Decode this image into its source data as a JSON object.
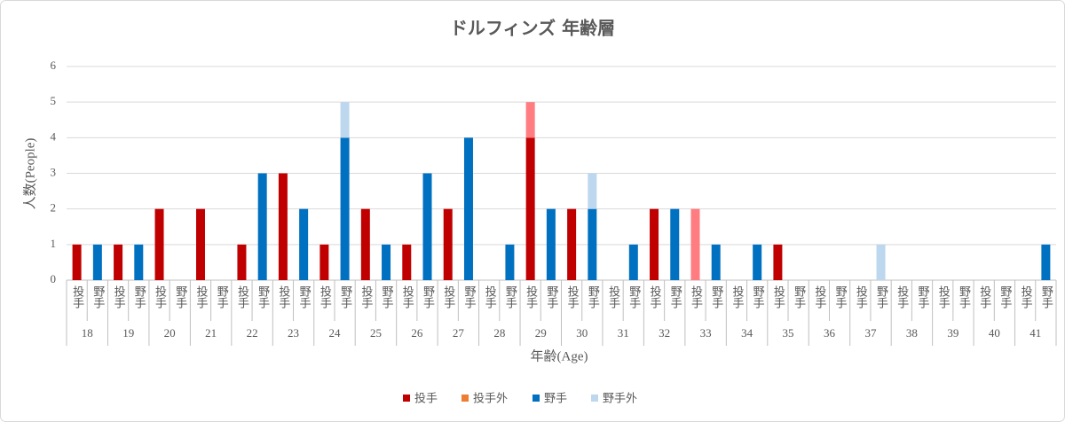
{
  "chart_data": {
    "type": "stacked_bar",
    "title": "ドルフィンズ 年齢層",
    "x_label": "年齢(Age)",
    "y_label": "人数(People)",
    "categories": [
      "投手",
      "野手",
      "投手",
      "野手",
      "投手",
      "野手",
      "投手",
      "野手",
      "投手",
      "野手",
      "投手",
      "野手",
      "投手",
      "野手",
      "投手",
      "野手",
      "投手",
      "野手",
      "投手",
      "野手",
      "投手",
      "野手",
      "投手",
      "野手",
      "投手",
      "野手",
      "投手",
      "野手",
      "投手",
      "野手",
      "投手",
      "野手",
      "投手",
      "野手",
      "投手",
      "野手",
      "投手",
      "野手",
      "投手",
      "野手",
      "投手",
      "野手",
      "投手",
      "野手",
      "投手",
      "野手",
      "投手",
      "野手"
    ],
    "groups": [
      "18",
      "19",
      "20",
      "21",
      "22",
      "23",
      "24",
      "25",
      "26",
      "27",
      "28",
      "29",
      "30",
      "31",
      "32",
      "33",
      "34",
      "35",
      "36",
      "37",
      "38",
      "39",
      "40",
      "41"
    ],
    "series": [
      {
        "name": "投手",
        "color": "#c00000",
        "values": [
          1,
          0,
          1,
          0,
          2,
          0,
          2,
          0,
          1,
          0,
          3,
          0,
          1,
          0,
          2,
          0,
          1,
          0,
          2,
          0,
          0,
          0,
          4,
          0,
          2,
          0,
          0,
          0,
          2,
          0,
          0,
          0,
          0,
          0,
          1,
          0,
          0,
          0,
          0,
          0,
          0,
          0,
          0,
          0,
          0,
          0,
          0,
          0
        ]
      },
      {
        "name": "投手外",
        "color": "#ff7c80",
        "legend_color": "#ed7d31",
        "values": [
          0,
          0,
          0,
          0,
          0,
          0,
          0,
          0,
          0,
          0,
          0,
          0,
          0,
          0,
          0,
          0,
          0,
          0,
          0,
          0,
          0,
          0,
          1,
          0,
          0,
          0,
          0,
          0,
          0,
          0,
          2,
          0,
          0,
          0,
          0,
          0,
          0,
          0,
          0,
          0,
          0,
          0,
          0,
          0,
          0,
          0,
          0,
          0
        ]
      },
      {
        "name": "野手",
        "color": "#0070c0",
        "values": [
          0,
          1,
          0,
          1,
          0,
          0,
          0,
          0,
          0,
          3,
          0,
          2,
          0,
          4,
          0,
          1,
          0,
          3,
          0,
          4,
          0,
          1,
          0,
          2,
          0,
          2,
          0,
          1,
          0,
          2,
          0,
          1,
          0,
          1,
          0,
          0,
          0,
          0,
          0,
          0,
          0,
          0,
          0,
          0,
          0,
          0,
          0,
          1
        ]
      },
      {
        "name": "野手外",
        "color": "#bdd7ee",
        "values": [
          0,
          0,
          0,
          0,
          0,
          0,
          0,
          0,
          0,
          0,
          0,
          0,
          0,
          1,
          0,
          0,
          0,
          0,
          0,
          0,
          0,
          0,
          0,
          0,
          0,
          1,
          0,
          0,
          0,
          0,
          0,
          0,
          0,
          0,
          0,
          0,
          0,
          0,
          0,
          1,
          0,
          0,
          0,
          0,
          0,
          0,
          0,
          0
        ]
      }
    ],
    "ylim": [
      0,
      6
    ],
    "yticks": [
      0,
      1,
      2,
      3,
      4,
      5,
      6
    ],
    "grid": true,
    "legend": "bottom"
  }
}
